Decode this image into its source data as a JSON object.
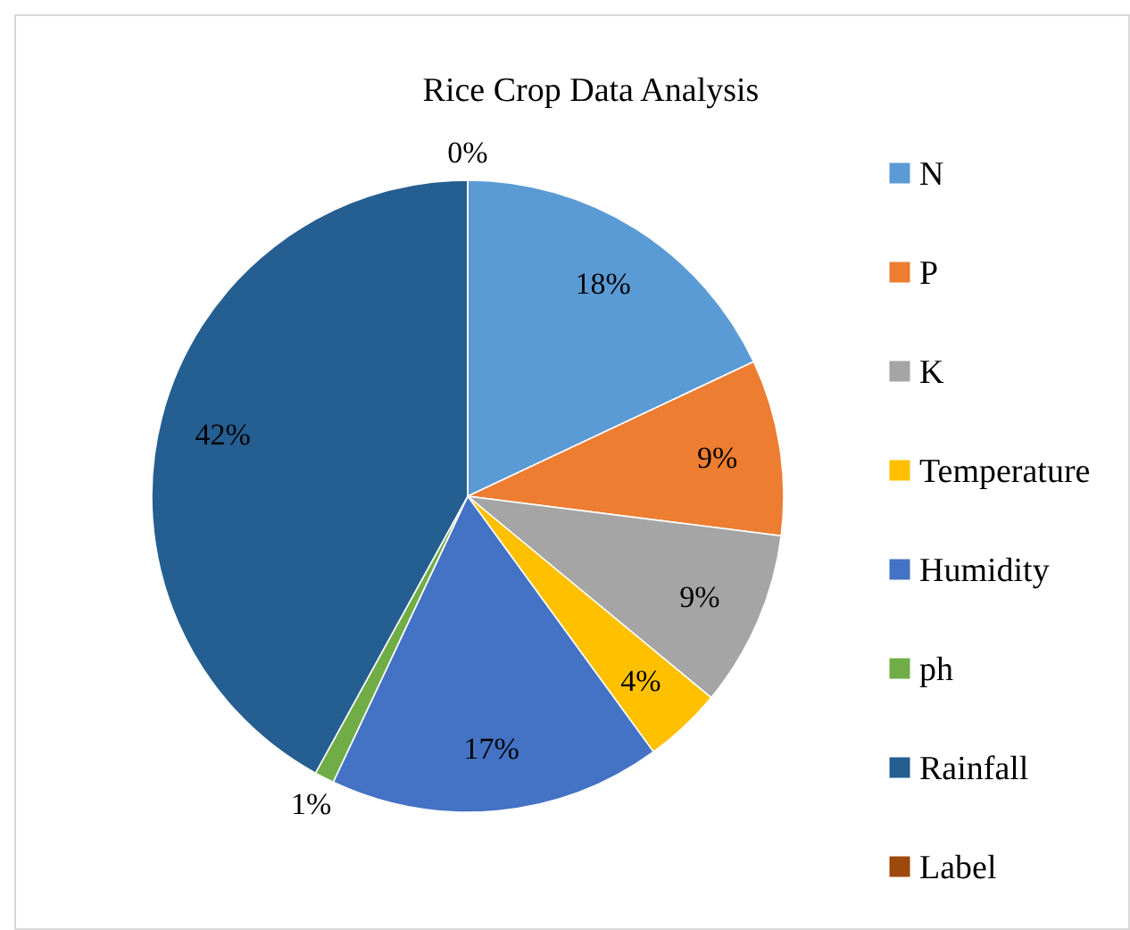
{
  "chart_data": {
    "type": "pie",
    "title": "Rice Crop Data Analysis",
    "categories": [
      "N",
      "P",
      "K",
      "Temperature",
      "Humidity",
      "ph",
      "Rainfall",
      "Label"
    ],
    "values": [
      18,
      9,
      9,
      4,
      17,
      1,
      42,
      0
    ],
    "colors": [
      "#5b9bd5",
      "#ed7d31",
      "#a5a5a5",
      "#ffc000",
      "#4472c4",
      "#70ad47",
      "#255e91",
      "#9e480e"
    ],
    "value_labels": [
      "18%",
      "9%",
      "9%",
      "4%",
      "17%",
      "1%",
      "42%",
      "0%"
    ],
    "legend": "right"
  }
}
